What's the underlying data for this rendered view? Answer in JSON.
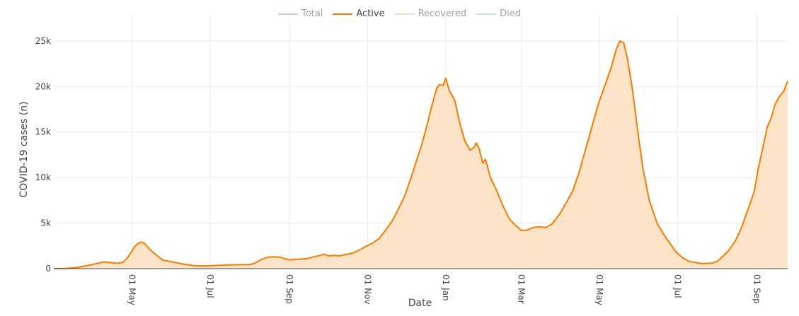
{
  "chart_data": {
    "type": "area",
    "xlabel": "Date",
    "ylabel": "COVID-19 cases (n)",
    "y_ticks": [
      {
        "value": 0,
        "label": "0"
      },
      {
        "value": 5000,
        "label": "5k"
      },
      {
        "value": 10000,
        "label": "10k"
      },
      {
        "value": 15000,
        "label": "15k"
      },
      {
        "value": 20000,
        "label": "20k"
      },
      {
        "value": 25000,
        "label": "25k"
      }
    ],
    "ylim": [
      0,
      26000
    ],
    "xlim": [
      "2020-03-01",
      "2021-09-25"
    ],
    "x_ticks": [
      {
        "date": "2020-05-01",
        "label": "01 May"
      },
      {
        "date": "2020-07-01",
        "label": "01 Jul"
      },
      {
        "date": "2020-09-01",
        "label": "01 Sep"
      },
      {
        "date": "2020-11-01",
        "label": "01 Nov"
      },
      {
        "date": "2021-01-01",
        "label": "01 Jan"
      },
      {
        "date": "2021-03-01",
        "label": "01 Mar"
      },
      {
        "date": "2021-05-01",
        "label": "01 May"
      },
      {
        "date": "2021-07-01",
        "label": "01 Jul"
      },
      {
        "date": "2021-09-01",
        "label": "01 Sep"
      }
    ],
    "grid": true,
    "legend_position": "top-center",
    "series": [
      {
        "name": "Total",
        "color": "#e377a0",
        "visible": false,
        "points": []
      },
      {
        "name": "Recovered",
        "color": "#b5d98a",
        "visible": false,
        "points": []
      },
      {
        "name": "Died",
        "color": "#7fd3ee",
        "visible": false,
        "points": []
      },
      {
        "name": "Active",
        "color": "#f57c00",
        "fill": "#fde3c8",
        "visible": true,
        "points": [
          [
            "2020-03-01",
            0
          ],
          [
            "2020-03-10",
            20
          ],
          [
            "2020-03-20",
            150
          ],
          [
            "2020-03-31",
            450
          ],
          [
            "2020-04-05",
            600
          ],
          [
            "2020-04-09",
            750
          ],
          [
            "2020-04-15",
            650
          ],
          [
            "2020-04-20",
            580
          ],
          [
            "2020-04-24",
            700
          ],
          [
            "2020-04-27",
            1100
          ],
          [
            "2020-04-30",
            1700
          ],
          [
            "2020-05-03",
            2400
          ],
          [
            "2020-05-06",
            2800
          ],
          [
            "2020-05-09",
            2900
          ],
          [
            "2020-05-11",
            2750
          ],
          [
            "2020-05-15",
            2100
          ],
          [
            "2020-05-20",
            1500
          ],
          [
            "2020-05-25",
            950
          ],
          [
            "2020-06-01",
            750
          ],
          [
            "2020-06-10",
            500
          ],
          [
            "2020-06-20",
            300
          ],
          [
            "2020-06-30",
            310
          ],
          [
            "2020-07-10",
            380
          ],
          [
            "2020-07-20",
            420
          ],
          [
            "2020-08-01",
            440
          ],
          [
            "2020-08-05",
            600
          ],
          [
            "2020-08-10",
            1000
          ],
          [
            "2020-08-15",
            1250
          ],
          [
            "2020-08-20",
            1300
          ],
          [
            "2020-08-25",
            1250
          ],
          [
            "2020-09-01",
            950
          ],
          [
            "2020-09-05",
            1000
          ],
          [
            "2020-09-10",
            1050
          ],
          [
            "2020-09-15",
            1100
          ],
          [
            "2020-09-20",
            1300
          ],
          [
            "2020-09-25",
            1450
          ],
          [
            "2020-09-28",
            1600
          ],
          [
            "2020-10-01",
            1400
          ],
          [
            "2020-10-06",
            1450
          ],
          [
            "2020-10-10",
            1400
          ],
          [
            "2020-10-15",
            1550
          ],
          [
            "2020-10-20",
            1700
          ],
          [
            "2020-10-25",
            2000
          ],
          [
            "2020-10-30",
            2400
          ],
          [
            "2020-11-05",
            2800
          ],
          [
            "2020-11-10",
            3300
          ],
          [
            "2020-11-15",
            4200
          ],
          [
            "2020-11-20",
            5200
          ],
          [
            "2020-11-25",
            6500
          ],
          [
            "2020-11-30",
            8000
          ],
          [
            "2020-12-05",
            10000
          ],
          [
            "2020-12-09",
            11800
          ],
          [
            "2020-12-13",
            13500
          ],
          [
            "2020-12-17",
            15500
          ],
          [
            "2020-12-21",
            17800
          ],
          [
            "2020-12-25",
            19800
          ],
          [
            "2020-12-27",
            20200
          ],
          [
            "2020-12-30",
            20100
          ],
          [
            "2021-01-01",
            20900
          ],
          [
            "2021-01-04",
            19500
          ],
          [
            "2021-01-08",
            18500
          ],
          [
            "2021-01-12",
            16000
          ],
          [
            "2021-01-16",
            14000
          ],
          [
            "2021-01-20",
            13000
          ],
          [
            "2021-01-23",
            13300
          ],
          [
            "2021-01-25",
            13800
          ],
          [
            "2021-01-27",
            13200
          ],
          [
            "2021-01-30",
            11600
          ],
          [
            "2021-02-01",
            12000
          ],
          [
            "2021-02-05",
            10000
          ],
          [
            "2021-02-10",
            8500
          ],
          [
            "2021-02-15",
            6800
          ],
          [
            "2021-02-20",
            5400
          ],
          [
            "2021-02-25",
            4700
          ],
          [
            "2021-03-01",
            4200
          ],
          [
            "2021-03-05",
            4200
          ],
          [
            "2021-03-10",
            4500
          ],
          [
            "2021-03-15",
            4600
          ],
          [
            "2021-03-20",
            4500
          ],
          [
            "2021-03-25",
            4900
          ],
          [
            "2021-03-31",
            6000
          ],
          [
            "2021-04-05",
            7200
          ],
          [
            "2021-04-10",
            8500
          ],
          [
            "2021-04-15",
            10500
          ],
          [
            "2021-04-20",
            13000
          ],
          [
            "2021-04-25",
            15500
          ],
          [
            "2021-04-30",
            18000
          ],
          [
            "2021-05-05",
            20000
          ],
          [
            "2021-05-10",
            22000
          ],
          [
            "2021-05-14",
            24000
          ],
          [
            "2021-05-17",
            25000
          ],
          [
            "2021-05-20",
            24800
          ],
          [
            "2021-05-23",
            23000
          ],
          [
            "2021-05-27",
            19500
          ],
          [
            "2021-05-31",
            15000
          ],
          [
            "2021-06-04",
            11000
          ],
          [
            "2021-06-09",
            7500
          ],
          [
            "2021-06-15",
            5000
          ],
          [
            "2021-06-20",
            3800
          ],
          [
            "2021-06-25",
            2800
          ],
          [
            "2021-06-30",
            1800
          ],
          [
            "2021-07-05",
            1200
          ],
          [
            "2021-07-10",
            800
          ],
          [
            "2021-07-20",
            550
          ],
          [
            "2021-07-28",
            600
          ],
          [
            "2021-08-01",
            800
          ],
          [
            "2021-08-05",
            1300
          ],
          [
            "2021-08-10",
            2000
          ],
          [
            "2021-08-15",
            3000
          ],
          [
            "2021-08-20",
            4500
          ],
          [
            "2021-08-25",
            6500
          ],
          [
            "2021-08-30",
            8500
          ],
          [
            "2021-09-02",
            11000
          ],
          [
            "2021-09-06",
            13500
          ],
          [
            "2021-09-09",
            15500
          ],
          [
            "2021-09-12",
            16500
          ],
          [
            "2021-09-15",
            18000
          ],
          [
            "2021-09-18",
            18800
          ],
          [
            "2021-09-22",
            19500
          ],
          [
            "2021-09-25",
            20600
          ]
        ]
      }
    ],
    "legend": [
      {
        "name": "Total",
        "color": "#e377a0",
        "visible": false
      },
      {
        "name": "Active",
        "color": "#f57c00",
        "visible": true
      },
      {
        "name": "Recovered",
        "color": "#b5d98a",
        "visible": false
      },
      {
        "name": "Died",
        "color": "#7fd3ee",
        "visible": false
      }
    ]
  }
}
